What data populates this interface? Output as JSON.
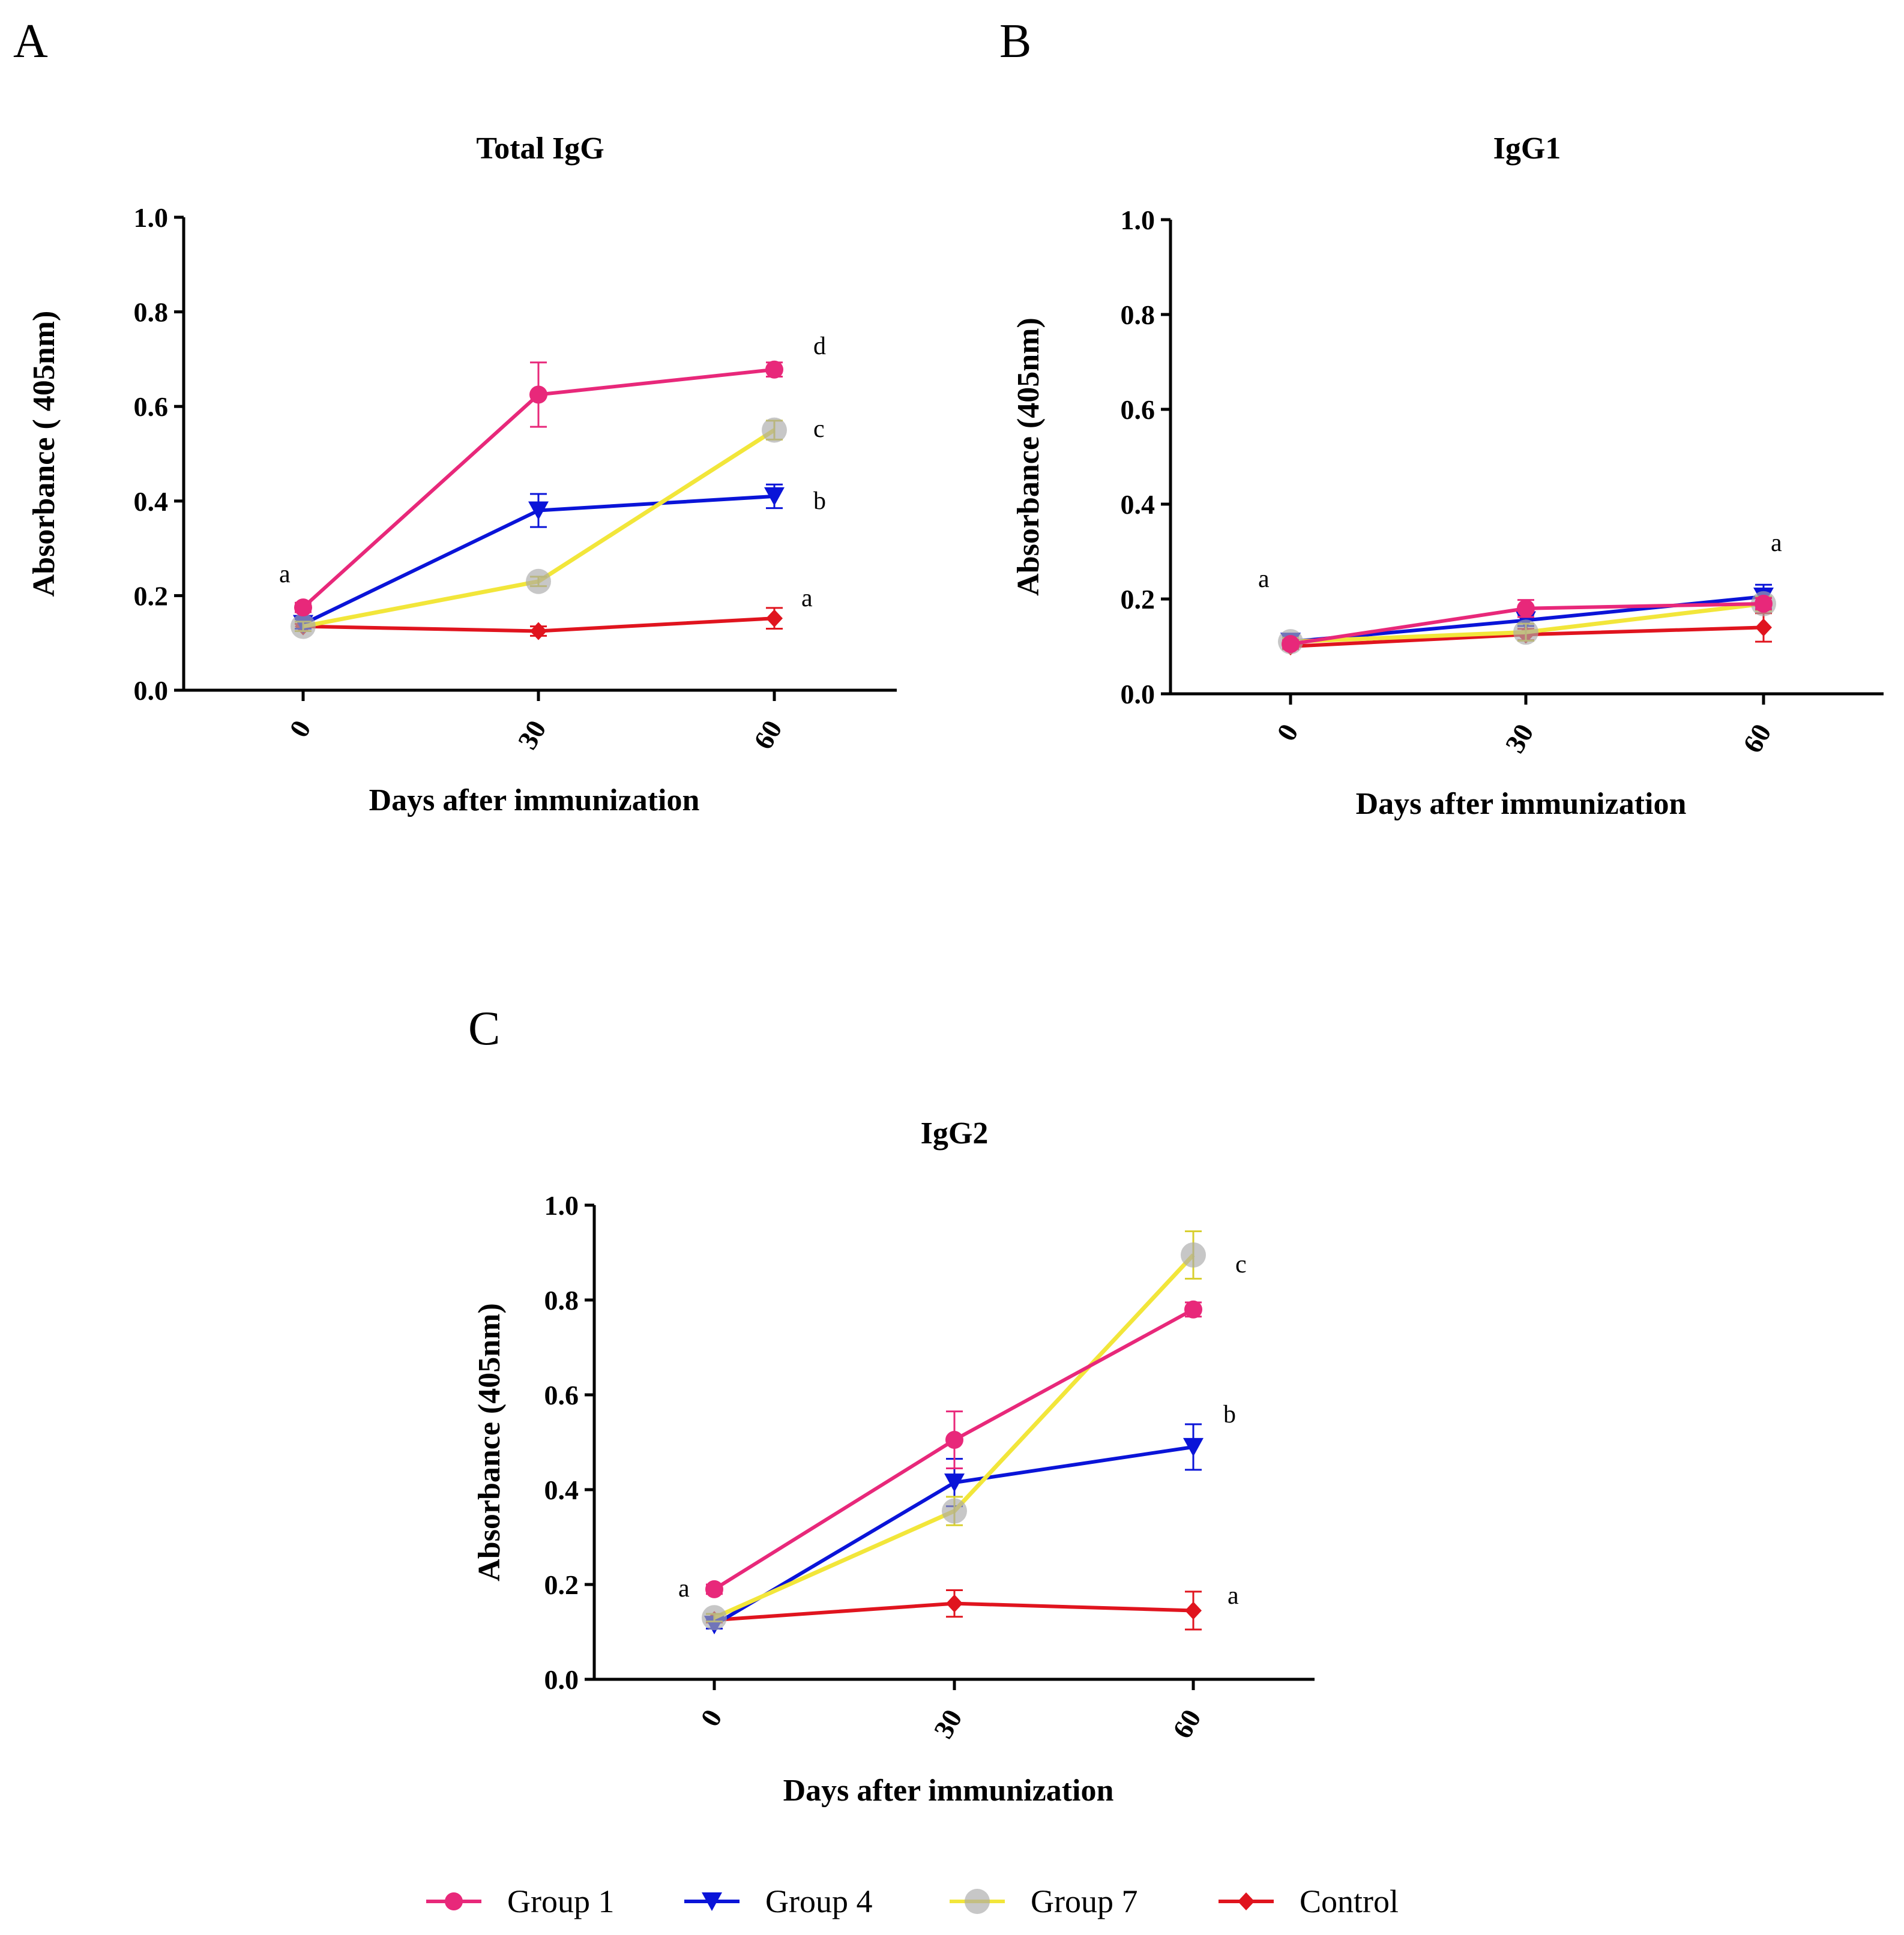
{
  "figure": {
    "panels": [
      "A",
      "B",
      "C"
    ]
  },
  "chart_data": [
    {
      "type": "line",
      "panel": "A",
      "title": "Total IgG",
      "xlabel": "Days after immunization",
      "ylabel": "Absorbance ( 405nm)",
      "categories": [
        "0",
        "30",
        "60"
      ],
      "ylim": [
        0,
        1.0
      ],
      "yticks": [
        "0.0",
        "0.2",
        "0.4",
        "0.6",
        "0.8",
        "1.0"
      ],
      "series": [
        {
          "name": "Group 1",
          "color": "#e8287a",
          "marker": "circle",
          "values": [
            0.175,
            0.625,
            0.678
          ],
          "errors": [
            0.01,
            0.068,
            0.015
          ]
        },
        {
          "name": "Group 4",
          "color": "#0a14d8",
          "marker": "triangle-down",
          "values": [
            0.14,
            0.38,
            0.41
          ],
          "errors": [
            0.01,
            0.035,
            0.025
          ]
        },
        {
          "name": "Group 7",
          "color": "#f2e63a",
          "marker": "circle-gray",
          "values": [
            0.135,
            0.23,
            0.55
          ],
          "errors": [
            0.01,
            0.01,
            0.02
          ]
        },
        {
          "name": "Control",
          "color": "#e0141e",
          "marker": "diamond",
          "values": [
            0.135,
            0.125,
            0.152
          ],
          "errors": [
            0.005,
            0.01,
            0.022
          ]
        }
      ],
      "annotations": [
        {
          "text": "a",
          "at": "day 0"
        },
        {
          "text": "d",
          "series": "Group 1"
        },
        {
          "text": "c",
          "series": "Group 7"
        },
        {
          "text": "b",
          "series": "Group 4"
        },
        {
          "text": "a",
          "series": "Control"
        }
      ]
    },
    {
      "type": "line",
      "panel": "B",
      "title": "IgG1",
      "xlabel": "Days after immunization",
      "ylabel": "Absorbance (405nm)",
      "categories": [
        "0",
        "30",
        "60"
      ],
      "ylim": [
        0,
        1.0
      ],
      "yticks": [
        "0.0",
        "0.2",
        "0.4",
        "0.6",
        "0.8",
        "1.0"
      ],
      "series": [
        {
          "name": "Group 1",
          "color": "#e8287a",
          "marker": "circle",
          "values": [
            0.105,
            0.18,
            0.19
          ],
          "errors": [
            0.008,
            0.018,
            0.012
          ]
        },
        {
          "name": "Group 4",
          "color": "#0a14d8",
          "marker": "triangle-down",
          "values": [
            0.11,
            0.155,
            0.205
          ],
          "errors": [
            0.008,
            0.012,
            0.025
          ]
        },
        {
          "name": "Group 7",
          "color": "#f2e63a",
          "marker": "circle-gray",
          "values": [
            0.11,
            0.13,
            0.19
          ],
          "errors": [
            0.008,
            0.018,
            0.015
          ]
        },
        {
          "name": "Control",
          "color": "#e0141e",
          "marker": "diamond",
          "values": [
            0.1,
            0.125,
            0.14
          ],
          "errors": [
            0.006,
            0.012,
            0.03
          ]
        }
      ],
      "annotations": [
        {
          "text": "a",
          "at": "day 0"
        },
        {
          "text": "a",
          "at": "day 60"
        }
      ]
    },
    {
      "type": "line",
      "panel": "C",
      "title": "IgG2",
      "xlabel": "Days after immunization",
      "ylabel": "Absorbance (405nm)",
      "categories": [
        "0",
        "30",
        "60"
      ],
      "ylim": [
        0,
        1.0
      ],
      "yticks": [
        "0.0",
        "0.2",
        "0.4",
        "0.6",
        "0.8",
        "1.0"
      ],
      "series": [
        {
          "name": "Group 1",
          "color": "#e8287a",
          "marker": "circle",
          "values": [
            0.19,
            0.505,
            0.78
          ],
          "errors": [
            0.01,
            0.06,
            0.015
          ]
        },
        {
          "name": "Group 4",
          "color": "#0a14d8",
          "marker": "triangle-down",
          "values": [
            0.115,
            0.415,
            0.49
          ],
          "errors": [
            0.008,
            0.05,
            0.048
          ]
        },
        {
          "name": "Group 7",
          "color": "#f2e63a",
          "marker": "circle-gray",
          "values": [
            0.13,
            0.355,
            0.895
          ],
          "errors": [
            0.008,
            0.03,
            0.05
          ]
        },
        {
          "name": "Control",
          "color": "#e0141e",
          "marker": "diamond",
          "values": [
            0.125,
            0.16,
            0.145
          ],
          "errors": [
            0.005,
            0.028,
            0.04
          ]
        }
      ],
      "annotations": [
        {
          "text": "a",
          "at": "day 0"
        },
        {
          "text": "c",
          "series": "Group 7"
        },
        {
          "text": "b",
          "series": "Group 4"
        },
        {
          "text": "a",
          "series": "Control"
        }
      ]
    }
  ],
  "legend": {
    "placement": "bottom-center",
    "items": [
      "Group 1",
      "Group 4",
      "Group 7",
      "Control"
    ]
  }
}
